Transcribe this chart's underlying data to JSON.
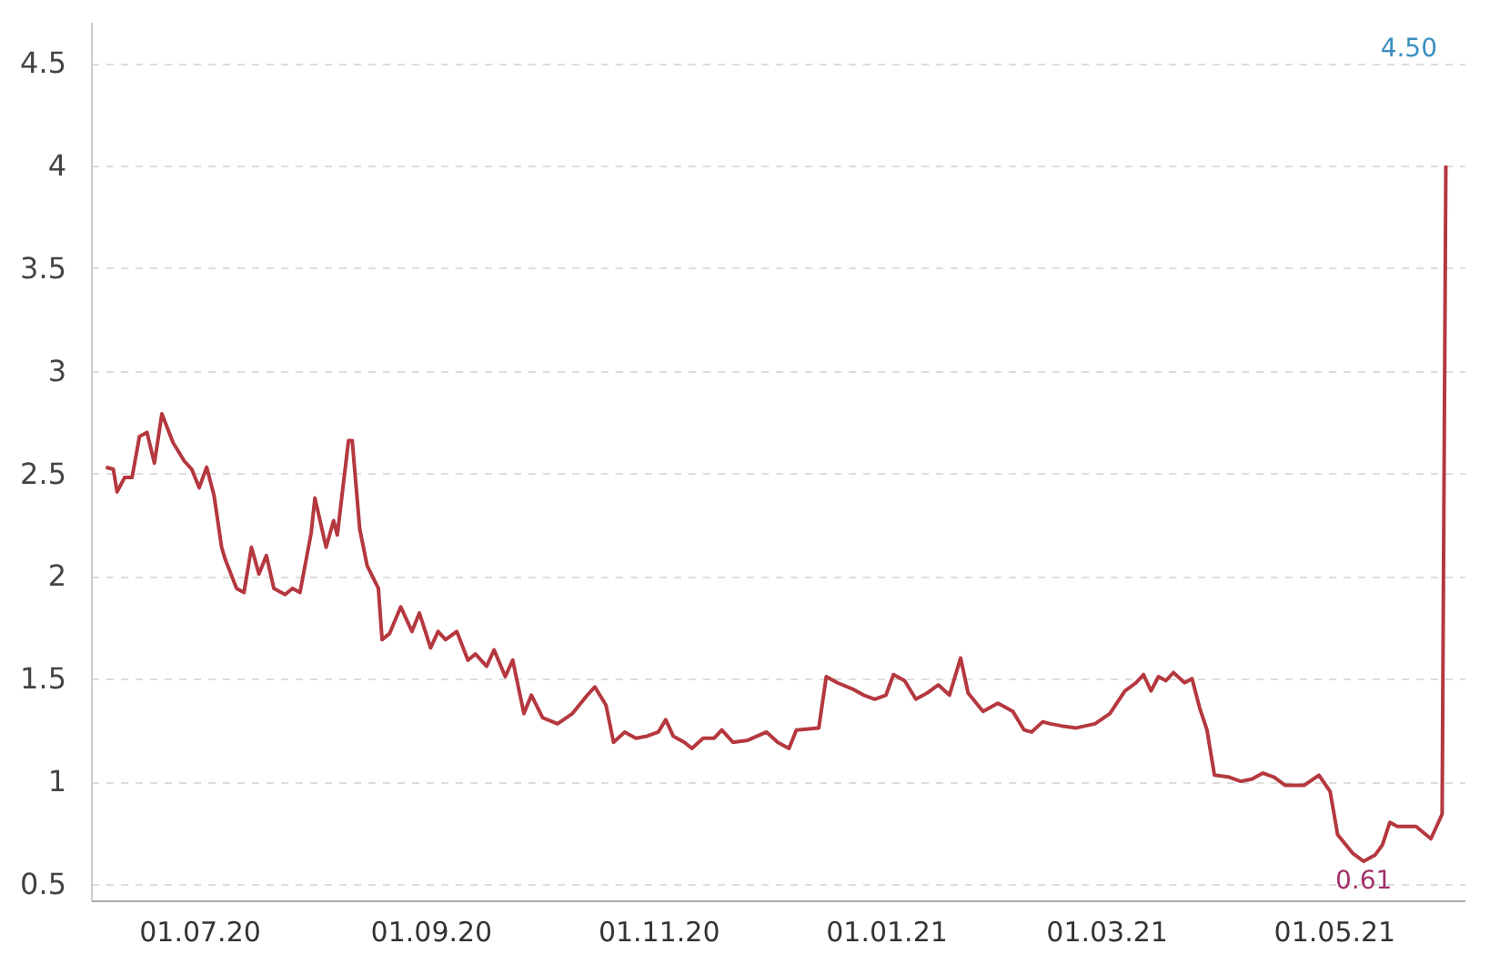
{
  "chart_data": {
    "type": "line",
    "x": [
      "2020-06-06",
      "2020-06-08",
      "2020-06-09",
      "2020-06-11",
      "2020-06-13",
      "2020-06-15",
      "2020-06-17",
      "2020-06-19",
      "2020-06-21",
      "2020-06-24",
      "2020-06-27",
      "2020-06-29",
      "2020-07-01",
      "2020-07-03",
      "2020-07-05",
      "2020-07-07",
      "2020-07-08",
      "2020-07-11",
      "2020-07-13",
      "2020-07-15",
      "2020-07-17",
      "2020-07-19",
      "2020-07-21",
      "2020-07-24",
      "2020-07-26",
      "2020-07-28",
      "2020-07-31",
      "2020-08-01",
      "2020-08-04",
      "2020-08-06",
      "2020-08-07",
      "2020-08-10",
      "2020-08-11",
      "2020-08-13",
      "2020-08-15",
      "2020-08-18",
      "2020-08-19",
      "2020-08-21",
      "2020-08-24",
      "2020-08-27",
      "2020-08-29",
      "2020-09-01",
      "2020-09-03",
      "2020-09-05",
      "2020-09-08",
      "2020-09-11",
      "2020-09-13",
      "2020-09-16",
      "2020-09-18",
      "2020-09-21",
      "2020-09-23",
      "2020-09-26",
      "2020-09-28",
      "2020-10-01",
      "2020-10-05",
      "2020-10-09",
      "2020-10-13",
      "2020-10-15",
      "2020-10-18",
      "2020-10-20",
      "2020-10-23",
      "2020-10-26",
      "2020-10-29",
      "2020-11-01",
      "2020-11-03",
      "2020-11-05",
      "2020-11-08",
      "2020-11-10",
      "2020-11-13",
      "2020-11-16",
      "2020-11-18",
      "2020-11-21",
      "2020-11-25",
      "2020-11-30",
      "2020-12-03",
      "2020-12-06",
      "2020-12-08",
      "2020-12-14",
      "2020-12-16",
      "2020-12-19",
      "2020-12-23",
      "2020-12-26",
      "2020-12-29",
      "2021-01-01",
      "2021-01-03",
      "2021-01-06",
      "2021-01-09",
      "2021-01-12",
      "2021-01-15",
      "2021-01-18",
      "2021-01-21",
      "2021-01-23",
      "2021-01-27",
      "2021-01-31",
      "2021-02-04",
      "2021-02-07",
      "2021-02-09",
      "2021-02-12",
      "2021-02-14",
      "2021-02-17",
      "2021-02-21",
      "2021-02-26",
      "2021-03-02",
      "2021-03-06",
      "2021-03-09",
      "2021-03-11",
      "2021-03-13",
      "2021-03-15",
      "2021-03-17",
      "2021-03-19",
      "2021-03-22",
      "2021-03-24",
      "2021-03-26",
      "2021-03-28",
      "2021-03-30",
      "2021-04-03",
      "2021-04-06",
      "2021-04-09",
      "2021-04-12",
      "2021-04-15",
      "2021-04-18",
      "2021-04-23",
      "2021-04-27",
      "2021-04-30",
      "2021-05-02",
      "2021-05-06",
      "2021-05-09",
      "2021-05-12",
      "2021-05-14",
      "2021-05-16",
      "2021-05-18",
      "2021-05-23",
      "2021-05-27",
      "2021-05-29",
      "2021-05-30",
      "2021-05-31"
    ],
    "series": [
      {
        "color": "#b5383f",
        "values": [
          2.53,
          2.52,
          2.41,
          2.48,
          2.48,
          2.68,
          2.7,
          2.55,
          2.79,
          2.65,
          2.56,
          2.52,
          2.43,
          2.53,
          2.39,
          2.14,
          2.08,
          1.94,
          1.92,
          2.14,
          2.01,
          2.1,
          1.94,
          1.91,
          1.94,
          1.92,
          2.21,
          2.38,
          2.14,
          2.27,
          2.2,
          2.66,
          2.66,
          2.23,
          2.05,
          1.94,
          1.69,
          1.72,
          1.85,
          1.73,
          1.82,
          1.65,
          1.73,
          1.69,
          1.73,
          1.59,
          1.62,
          1.56,
          1.64,
          1.51,
          1.59,
          1.33,
          1.42,
          1.31,
          1.28,
          1.33,
          1.42,
          1.46,
          1.37,
          1.19,
          1.24,
          1.21,
          1.22,
          1.24,
          1.3,
          1.22,
          1.19,
          1.16,
          1.21,
          1.21,
          1.25,
          1.19,
          1.2,
          1.24,
          1.19,
          1.16,
          1.25,
          1.26,
          1.51,
          1.48,
          1.45,
          1.42,
          1.4,
          1.42,
          1.52,
          1.49,
          1.4,
          1.43,
          1.47,
          1.42,
          1.6,
          1.43,
          1.34,
          1.38,
          1.34,
          1.25,
          1.24,
          1.29,
          1.28,
          1.27,
          1.26,
          1.28,
          1.33,
          1.44,
          1.48,
          1.52,
          1.44,
          1.51,
          1.49,
          1.53,
          1.48,
          1.5,
          1.36,
          1.25,
          1.03,
          1.02,
          1.0,
          1.01,
          1.04,
          1.02,
          0.98,
          0.98,
          1.03,
          0.95,
          0.74,
          0.65,
          0.61,
          0.64,
          0.69,
          0.8,
          0.78,
          0.78,
          0.72,
          0.8,
          0.84,
          4.0
        ]
      }
    ],
    "xlim": [
      "2020-06-02",
      "2021-06-05"
    ],
    "xticks": [
      {
        "value": "2020-07-01",
        "label": "01.07.20"
      },
      {
        "value": "2020-09-01",
        "label": "01.09.20"
      },
      {
        "value": "2020-11-01",
        "label": "01.11.20"
      },
      {
        "value": "2021-01-01",
        "label": "01.01.21"
      },
      {
        "value": "2021-03-01",
        "label": "01.03.21"
      },
      {
        "value": "2021-05-01",
        "label": "01.05.21"
      }
    ],
    "ylim": [
      0.42,
      4.7
    ],
    "yticks": [
      0.5,
      1,
      1.5,
      2,
      2.5,
      3,
      3.5,
      4,
      4.5
    ],
    "grid": "y",
    "line_style": "solid",
    "annotations": [
      {
        "text": "0.61",
        "x": "2021-05-09",
        "y": 0.61
      },
      "4.50"
    ]
  }
}
